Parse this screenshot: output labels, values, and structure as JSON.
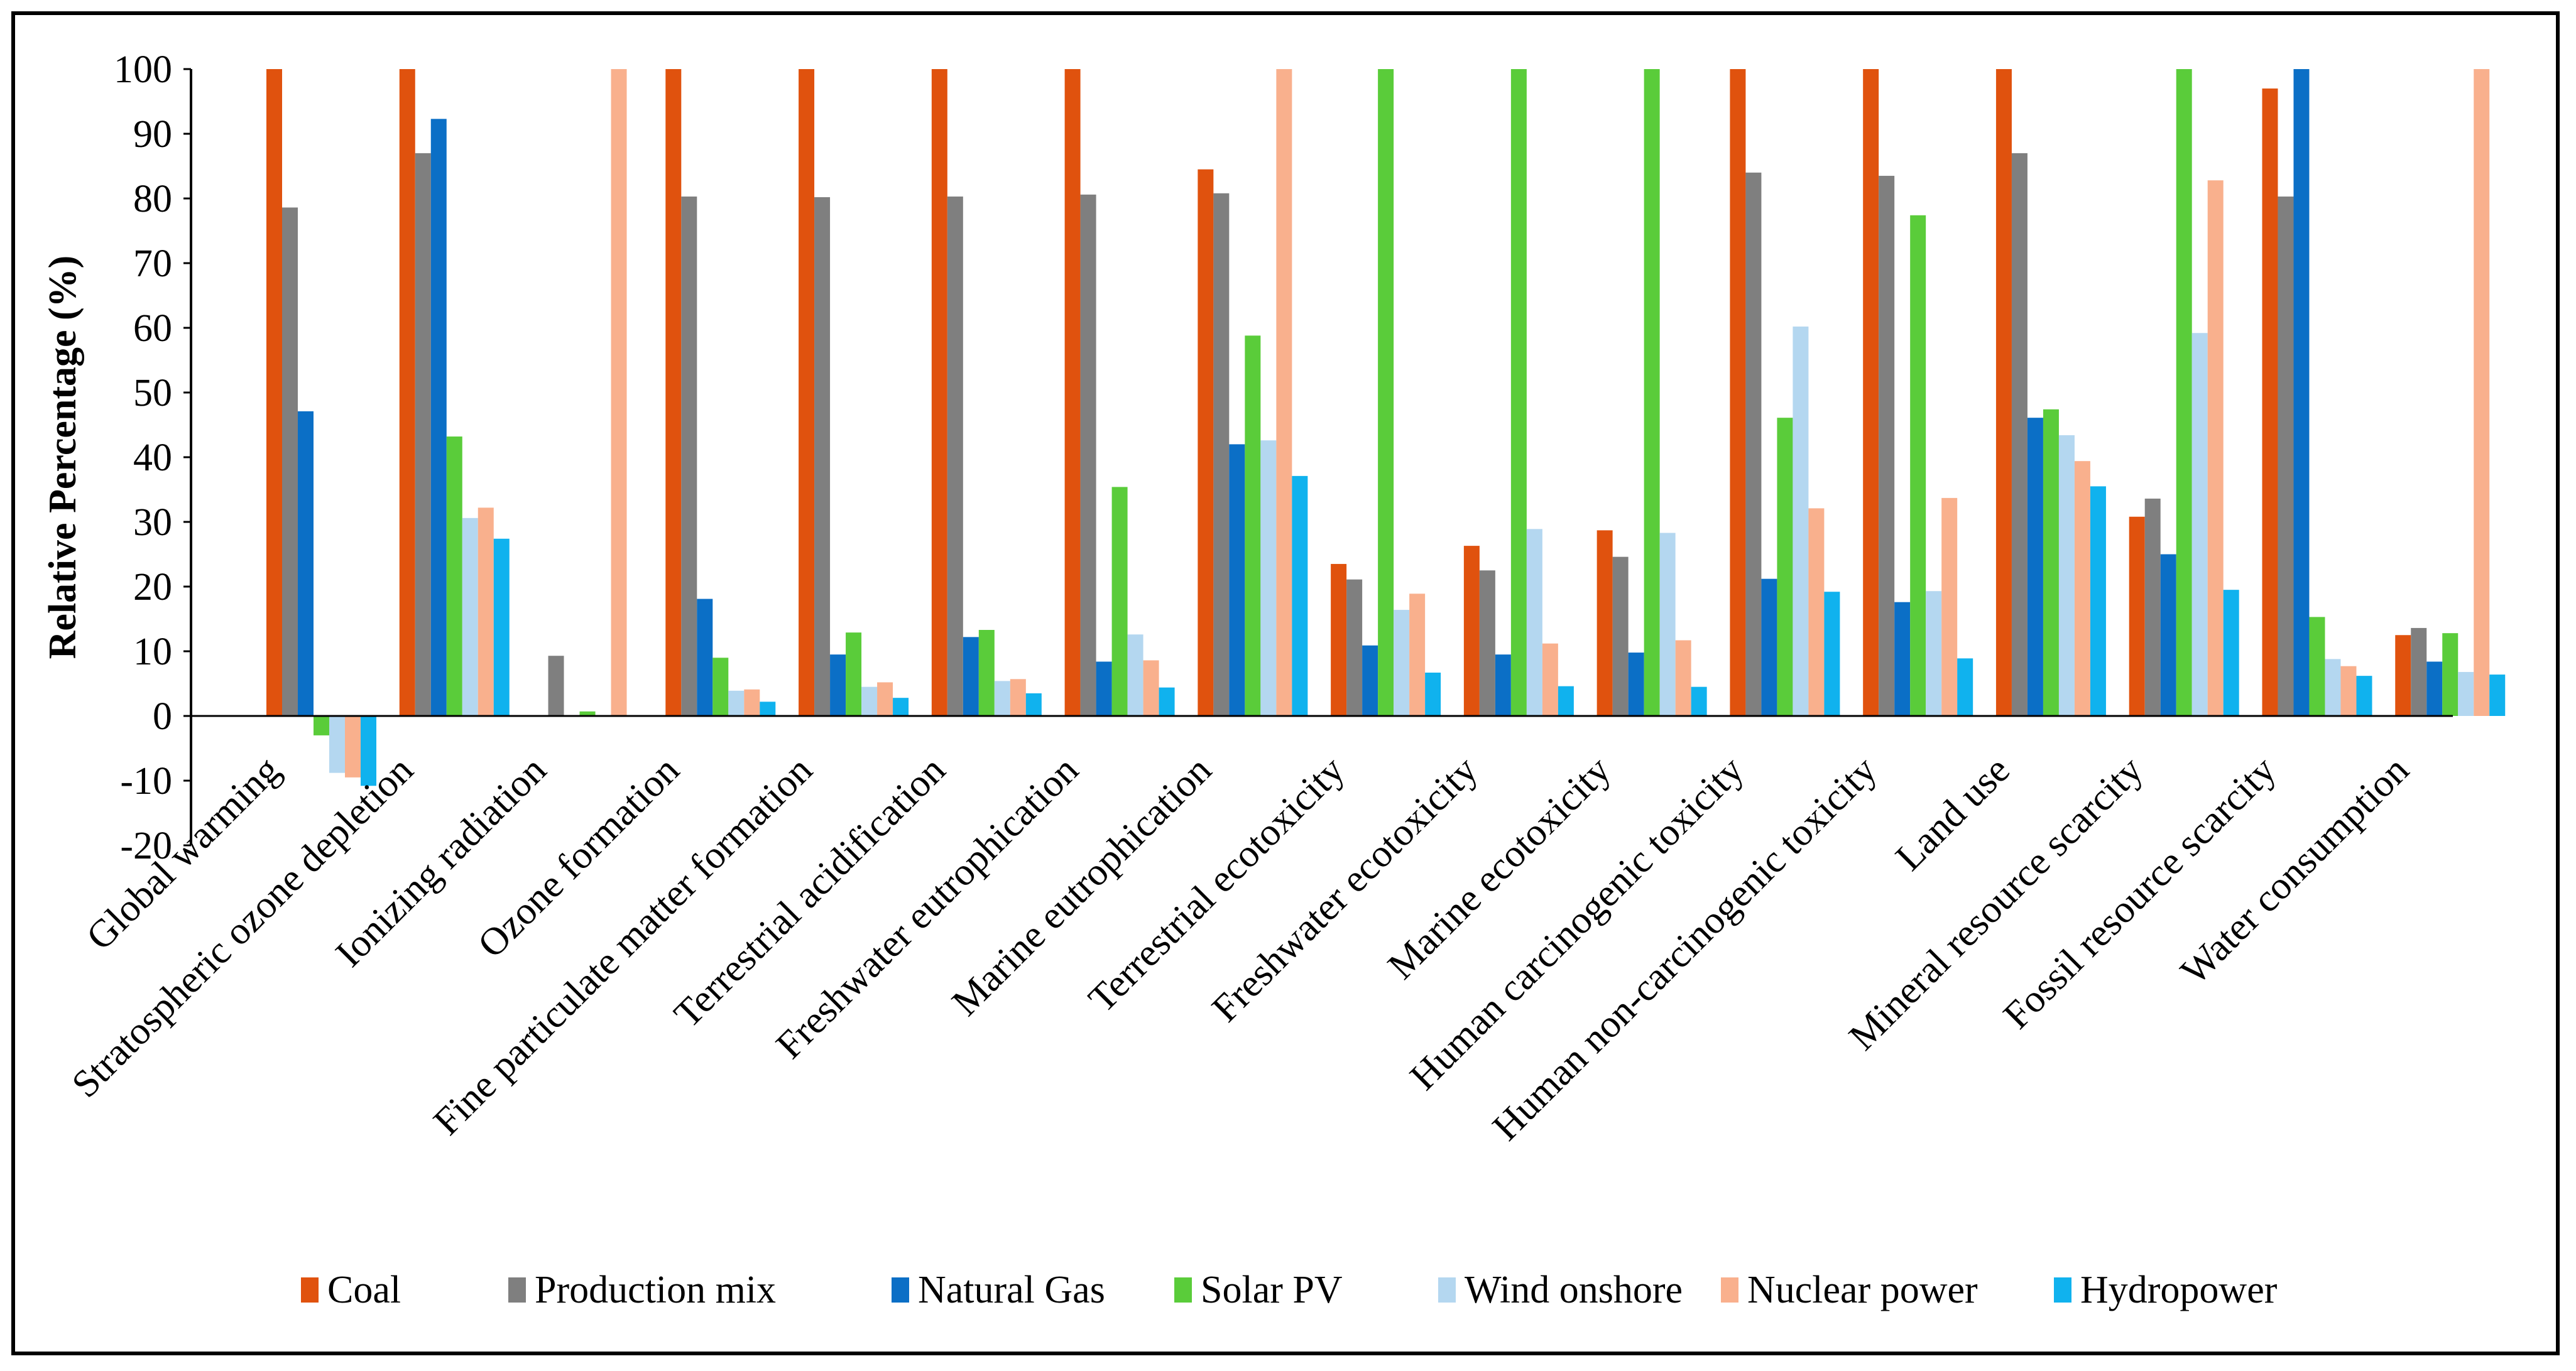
{
  "chart_data": {
    "type": "bar",
    "title": "",
    "xlabel": "",
    "ylabel": "Relative Percentage (%)",
    "ylim": [
      -20,
      100
    ],
    "yticks": [
      100,
      90,
      80,
      70,
      60,
      50,
      40,
      30,
      20,
      10,
      0,
      -10,
      -20
    ],
    "grid": false,
    "legend_position": "bottom",
    "categories": [
      "Global warming",
      "Stratospheric ozone depletion",
      "Ionizing radiation",
      "Ozone formation",
      "Fine particulate matter formation",
      "Terrestrial acidification",
      "Freshwater eutrophication",
      "Marine eutrophication",
      "Terrestrial ecotoxicity",
      "Freshwater ecotoxicity",
      "Marine ecotoxicity",
      "Human carcinogenic toxicity",
      "Human non-carcinogenic toxicity",
      "Land use",
      "Mineral resource scarcity",
      "Fossil resource scarcity",
      "Water consumption"
    ],
    "series": [
      {
        "name": "Coal",
        "color": "#E0520E",
        "values": [
          100,
          100,
          0,
          100,
          100,
          100,
          100,
          84.5,
          23.5,
          26.3,
          28.7,
          100,
          100,
          100,
          30.8,
          97,
          12.5
        ]
      },
      {
        "name": "Production mix",
        "color": "#7F7F7F",
        "values": [
          78.6,
          87,
          9.3,
          80.3,
          80.2,
          80.3,
          80.6,
          80.8,
          21.1,
          22.5,
          24.6,
          84,
          83.5,
          87,
          33.6,
          80.3,
          13.6
        ]
      },
      {
        "name": "Natural Gas",
        "color": "#0B6FC6",
        "values": [
          47.1,
          92.3,
          0,
          18.1,
          9.5,
          12.2,
          8.4,
          42,
          10.9,
          9.5,
          9.8,
          21.2,
          17.6,
          46.1,
          25,
          100,
          8.4
        ]
      },
      {
        "name": "Solar PV",
        "color": "#5ACC3A",
        "values": [
          -3,
          43.2,
          0.7,
          9,
          12.9,
          13.3,
          35.4,
          58.8,
          100,
          100,
          100,
          46.1,
          77.4,
          47.4,
          100,
          15.3,
          12.8
        ]
      },
      {
        "name": "Wind onshore",
        "color": "#B4D7F0",
        "values": [
          -8.8,
          30.6,
          0,
          3.9,
          4.5,
          5.4,
          12.6,
          42.6,
          16.4,
          28.9,
          28.3,
          60.2,
          19.3,
          43.4,
          59.2,
          8.8,
          6.8
        ]
      },
      {
        "name": "Nuclear power",
        "color": "#F9B08D",
        "values": [
          -9.5,
          32.2,
          100,
          4.1,
          5.2,
          5.7,
          8.6,
          100,
          18.9,
          11.2,
          11.7,
          32.1,
          33.7,
          39.4,
          82.8,
          7.7,
          100
        ]
      },
      {
        "name": "Hydropower",
        "color": "#10B2EE",
        "values": [
          -10.8,
          27.4,
          0,
          2.2,
          2.8,
          3.5,
          4.4,
          37.1,
          6.7,
          4.6,
          4.5,
          19.2,
          8.9,
          35.5,
          19.5,
          6.2,
          6.4
        ]
      }
    ]
  }
}
